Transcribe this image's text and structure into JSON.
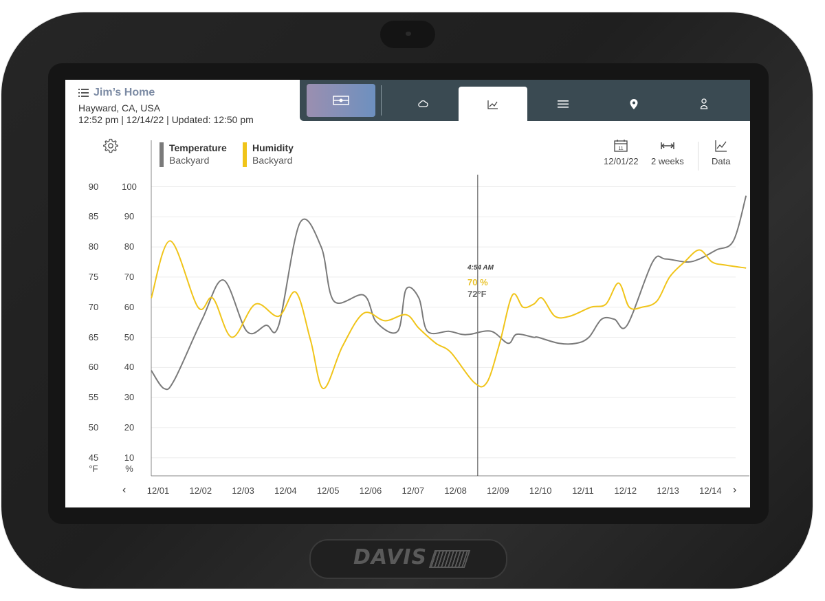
{
  "header": {
    "home_name": "Jim’s Home",
    "location": "Hayward, CA, USA",
    "time_line": "12:52 pm | 12/14/22 | Updated: 12:50 pm"
  },
  "nav": {
    "tabs": [
      {
        "name": "weather-cloud-icon"
      },
      {
        "name": "graph-icon",
        "active": true
      },
      {
        "name": "list-icon"
      },
      {
        "name": "map-pin-icon"
      },
      {
        "name": "user-icon"
      }
    ]
  },
  "toolbar": {
    "date_label": "12/01/22",
    "calendar_day": "11",
    "range_label": "2 weeks",
    "data_label": "Data"
  },
  "legend": [
    {
      "name": "Temperature",
      "location": "Backyard",
      "color": "#7a7a7a"
    },
    {
      "name": "Humidity",
      "location": "Backyard",
      "color": "#f0c419"
    }
  ],
  "readout": {
    "time": "4:54 AM",
    "humidity": "70 %",
    "temperature": "72°F"
  },
  "chart_data": {
    "type": "line",
    "x": [
      "12/01",
      "12/02",
      "12/03",
      "12/04",
      "12/05",
      "12/06",
      "12/07",
      "12/08",
      "12/09",
      "12/10",
      "12/11",
      "12/12",
      "12/13",
      "12/14"
    ],
    "y_left": {
      "unit": "°F",
      "ticks": [
        45,
        50,
        55,
        60,
        65,
        70,
        75,
        80,
        85,
        90
      ],
      "range": [
        42,
        92
      ]
    },
    "y_right": {
      "unit": "%",
      "ticks": [
        10,
        20,
        30,
        40,
        50,
        60,
        70,
        80,
        90,
        100
      ],
      "range": [
        4,
        104
      ]
    },
    "series": [
      {
        "name": "Temperature",
        "axis": "left",
        "color": "#7a7a7a",
        "x": [
          0,
          0.3,
          0.55,
          1.2,
          1.7,
          2.25,
          2.7,
          3.0,
          3.5,
          4.0,
          4.3,
          5.0,
          5.3,
          5.8,
          6.0,
          6.3,
          6.5,
          7.0,
          7.3,
          7.5,
          8.0,
          8.4,
          8.6,
          9.0,
          9.1,
          9.6,
          10.0,
          10.3,
          10.6,
          10.9,
          11.2,
          11.8,
          12.1,
          12.6,
          12.9,
          13.3,
          13.7,
          14.0
        ],
        "y": [
          59.5,
          56.5,
          58,
          68,
          74.5,
          66,
          67,
          67,
          84,
          80,
          71,
          72,
          67.5,
          66,
          73,
          71.5,
          66,
          66,
          65.5,
          65.5,
          66,
          64,
          65.5,
          65,
          65,
          64,
          64,
          65,
          68,
          68,
          67,
          77.5,
          78,
          77.5,
          78,
          79.5,
          81,
          88.5
        ]
      },
      {
        "name": "Humidity",
        "axis": "right",
        "color": "#f0c419",
        "x": [
          0,
          0.45,
          1.1,
          1.45,
          1.9,
          2.45,
          3.0,
          3.4,
          3.75,
          4.05,
          4.5,
          5.0,
          5.5,
          6.0,
          6.3,
          6.7,
          7.05,
          7.6,
          7.9,
          8.2,
          8.5,
          8.75,
          9.0,
          9.2,
          9.5,
          9.85,
          10.35,
          10.7,
          11.0,
          11.25,
          11.55,
          11.9,
          12.2,
          12.55,
          12.9,
          13.2,
          13.5,
          14.0
        ],
        "y": [
          63,
          82,
          60,
          63,
          50,
          61,
          57,
          65,
          49,
          33,
          47,
          58,
          55.5,
          57.5,
          53,
          48,
          45,
          35,
          35,
          48,
          64,
          60,
          61,
          63,
          57,
          57,
          60,
          61,
          68,
          60,
          60,
          62,
          70,
          75,
          79,
          75,
          74,
          73
        ]
      }
    ],
    "cursor": {
      "x": 7.7
    },
    "grid": true
  }
}
